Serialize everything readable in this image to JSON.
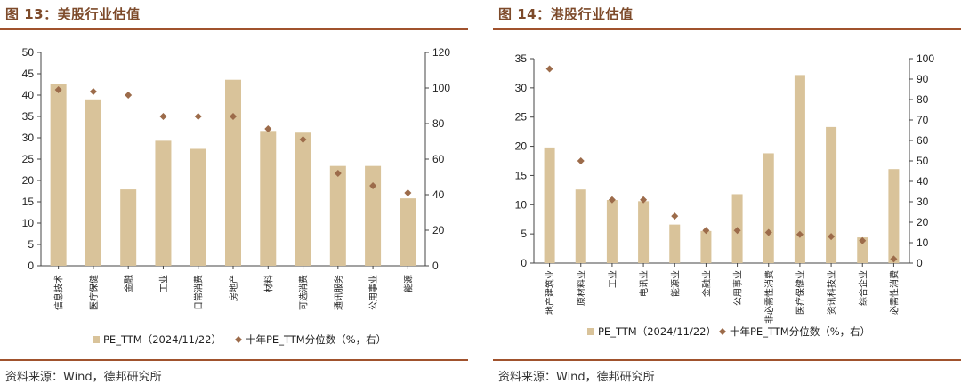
{
  "panels": [
    {
      "title": "图 13：美股行业估值",
      "source": "资料来源：Wind，德邦研究所",
      "chart_data": {
        "type": "bar",
        "categories": [
          "信息技术",
          "医疗保健",
          "金融",
          "工业",
          "日常消费",
          "房地产",
          "材料",
          "可选消费",
          "通讯服务",
          "公用事业",
          "能源"
        ],
        "series": [
          {
            "name": "PE_TTM（2024/11/22）",
            "type": "bar",
            "axis": "left",
            "color": "#d9c39a",
            "values": [
              42.6,
              39.0,
              17.9,
              29.3,
              27.4,
              43.6,
              31.6,
              31.2,
              23.4,
              23.4,
              15.8
            ]
          },
          {
            "name": "十年PE_TTM分位数（%，右）",
            "type": "scatter",
            "axis": "right",
            "color": "#9c6b4a",
            "marker": "diamond",
            "values": [
              99,
              98,
              96,
              84,
              84,
              84,
              77,
              71,
              52,
              45,
              41
            ]
          }
        ],
        "y_left": {
          "min": 0,
          "max": 50,
          "ticks": [
            0,
            5,
            10,
            15,
            20,
            25,
            30,
            35,
            40,
            45,
            50
          ]
        },
        "y_right": {
          "min": 0,
          "max": 120,
          "ticks": [
            0,
            20,
            40,
            60,
            80,
            100,
            120
          ]
        },
        "grid": false,
        "legend": "bottom"
      }
    },
    {
      "title": "图 14：港股行业估值",
      "source": "资料来源：Wind，德邦研究所",
      "chart_data": {
        "type": "bar",
        "categories": [
          "地产建筑业",
          "原材料业",
          "工业",
          "电讯业",
          "能源业",
          "金融业",
          "公用事业",
          "非必需性消费",
          "医疗保健业",
          "资讯科技业",
          "综合企业",
          "必需性消费"
        ],
        "series": [
          {
            "name": "PE_TTM（2024/11/22）",
            "type": "bar",
            "axis": "left",
            "color": "#d9c39a",
            "values": [
              19.8,
              12.6,
              10.8,
              10.6,
              6.6,
              5.5,
              11.8,
              18.8,
              32.2,
              23.3,
              4.4,
              16.1
            ]
          },
          {
            "name": "十年PE_TTM分位数（%，右）",
            "type": "scatter",
            "axis": "right",
            "color": "#9c6b4a",
            "marker": "diamond",
            "values": [
              95,
              50,
              31,
              31,
              23,
              16,
              16,
              15,
              14,
              13,
              11,
              2
            ]
          }
        ],
        "y_left": {
          "min": 0,
          "max": 35,
          "ticks": [
            0,
            5,
            10,
            15,
            20,
            25,
            30,
            35
          ]
        },
        "y_right": {
          "min": 0,
          "max": 100,
          "ticks": [
            0,
            10,
            20,
            30,
            40,
            50,
            60,
            70,
            80,
            90,
            100
          ]
        },
        "grid": false,
        "legend": "bottom"
      }
    }
  ]
}
